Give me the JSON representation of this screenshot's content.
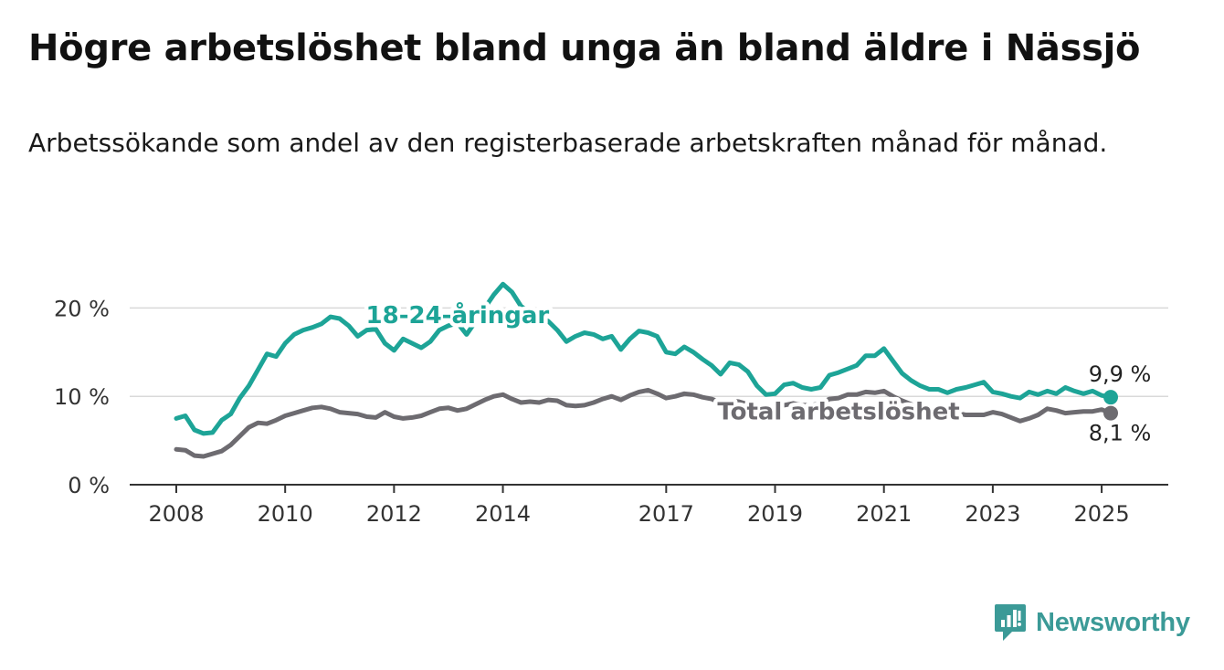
{
  "page": {
    "title": "Högre arbetslöshet bland unga än bland äldre i Nässjö",
    "subtitle": "Arbetssökande som andel av den registerbaserade arbetskraften månad för månad.",
    "brand": "Newsworthy"
  },
  "colors": {
    "youth": "#1da497",
    "total": "#6d6b70",
    "grid": "#d9d9d9",
    "axis": "#333333",
    "brand": "#3b9a97"
  },
  "chart_data": {
    "type": "line",
    "title": "Högre arbetslöshet bland unga än bland äldre i Nässjö",
    "subtitle": "Arbetssökande som andel av den registerbaserade arbetskraften månad för månad.",
    "ylim": [
      0,
      25
    ],
    "xlim": [
      "2007-02",
      "2026-08"
    ],
    "y_ticks": [
      {
        "value": 0,
        "label": "0 %"
      },
      {
        "value": 10,
        "label": "10 %"
      },
      {
        "value": 20,
        "label": "20 %"
      }
    ],
    "x_ticks": [
      {
        "date": "2008-01",
        "label": "2008"
      },
      {
        "date": "2010-01",
        "label": "2010"
      },
      {
        "date": "2012-01",
        "label": "2012"
      },
      {
        "date": "2014-01",
        "label": "2014"
      },
      {
        "date": "2017-01",
        "label": "2017"
      },
      {
        "date": "2019-01",
        "label": "2019"
      },
      {
        "date": "2021-01",
        "label": "2021"
      },
      {
        "date": "2023-01",
        "label": "2023"
      },
      {
        "date": "2025-01",
        "label": "2025"
      }
    ],
    "grid": true,
    "series": [
      {
        "name": "18-24-åringar",
        "key": "youth",
        "end_label": "9,9 %",
        "points": [
          [
            "2008-01",
            7.5
          ],
          [
            "2008-03",
            7.8
          ],
          [
            "2008-05",
            6.2
          ],
          [
            "2008-07",
            5.8
          ],
          [
            "2008-09",
            5.9
          ],
          [
            "2008-11",
            7.3
          ],
          [
            "2009-01",
            8.0
          ],
          [
            "2009-03",
            9.8
          ],
          [
            "2009-05",
            11.2
          ],
          [
            "2009-07",
            13.0
          ],
          [
            "2009-09",
            14.8
          ],
          [
            "2009-11",
            14.5
          ],
          [
            "2010-01",
            16.0
          ],
          [
            "2010-03",
            17.0
          ],
          [
            "2010-05",
            17.5
          ],
          [
            "2010-07",
            17.8
          ],
          [
            "2010-09",
            18.2
          ],
          [
            "2010-11",
            19.0
          ],
          [
            "2011-01",
            18.8
          ],
          [
            "2011-03",
            18.0
          ],
          [
            "2011-05",
            16.8
          ],
          [
            "2011-07",
            17.5
          ],
          [
            "2011-09",
            17.6
          ],
          [
            "2011-11",
            16.0
          ],
          [
            "2012-01",
            15.2
          ],
          [
            "2012-03",
            16.5
          ],
          [
            "2012-05",
            16.0
          ],
          [
            "2012-07",
            15.5
          ],
          [
            "2012-09",
            16.2
          ],
          [
            "2012-11",
            17.5
          ],
          [
            "2013-01",
            18.0
          ],
          [
            "2013-03",
            18.3
          ],
          [
            "2013-05",
            17.0
          ],
          [
            "2013-07",
            18.5
          ],
          [
            "2013-09",
            20.0
          ],
          [
            "2013-11",
            21.5
          ],
          [
            "2014-01",
            22.7
          ],
          [
            "2014-03",
            21.8
          ],
          [
            "2014-05",
            20.2
          ],
          [
            "2014-07",
            19.5
          ],
          [
            "2014-09",
            19.0
          ],
          [
            "2014-11",
            18.5
          ],
          [
            "2015-01",
            17.5
          ],
          [
            "2015-03",
            16.2
          ],
          [
            "2015-05",
            16.8
          ],
          [
            "2015-07",
            17.2
          ],
          [
            "2015-09",
            17.0
          ],
          [
            "2015-11",
            16.5
          ],
          [
            "2016-01",
            16.8
          ],
          [
            "2016-03",
            15.3
          ],
          [
            "2016-05",
            16.5
          ],
          [
            "2016-07",
            17.4
          ],
          [
            "2016-09",
            17.2
          ],
          [
            "2016-11",
            16.8
          ],
          [
            "2017-01",
            15.0
          ],
          [
            "2017-03",
            14.8
          ],
          [
            "2017-05",
            15.6
          ],
          [
            "2017-07",
            15.0
          ],
          [
            "2017-09",
            14.2
          ],
          [
            "2017-11",
            13.5
          ],
          [
            "2018-01",
            12.5
          ],
          [
            "2018-03",
            13.8
          ],
          [
            "2018-05",
            13.6
          ],
          [
            "2018-07",
            12.8
          ],
          [
            "2018-09",
            11.2
          ],
          [
            "2018-11",
            10.2
          ],
          [
            "2019-01",
            10.3
          ],
          [
            "2019-03",
            11.3
          ],
          [
            "2019-05",
            11.5
          ],
          [
            "2019-07",
            11.0
          ],
          [
            "2019-09",
            10.8
          ],
          [
            "2019-11",
            11.0
          ],
          [
            "2020-01",
            12.4
          ],
          [
            "2020-03",
            12.7
          ],
          [
            "2020-05",
            13.1
          ],
          [
            "2020-07",
            13.5
          ],
          [
            "2020-09",
            14.6
          ],
          [
            "2020-11",
            14.6
          ],
          [
            "2021-01",
            15.4
          ],
          [
            "2021-03",
            14.0
          ],
          [
            "2021-05",
            12.6
          ],
          [
            "2021-07",
            11.8
          ],
          [
            "2021-09",
            11.2
          ],
          [
            "2021-11",
            10.8
          ],
          [
            "2022-01",
            10.8
          ],
          [
            "2022-03",
            10.4
          ],
          [
            "2022-05",
            10.8
          ],
          [
            "2022-07",
            11.0
          ],
          [
            "2022-09",
            11.3
          ],
          [
            "2022-11",
            11.6
          ],
          [
            "2023-01",
            10.5
          ],
          [
            "2023-03",
            10.3
          ],
          [
            "2023-05",
            10.0
          ],
          [
            "2023-07",
            9.8
          ],
          [
            "2023-09",
            10.5
          ],
          [
            "2023-11",
            10.2
          ],
          [
            "2024-01",
            10.6
          ],
          [
            "2024-03",
            10.3
          ],
          [
            "2024-05",
            11.0
          ],
          [
            "2024-07",
            10.6
          ],
          [
            "2024-09",
            10.3
          ],
          [
            "2024-11",
            10.6
          ],
          [
            "2025-01",
            10.1
          ],
          [
            "2025-03",
            9.9
          ]
        ]
      },
      {
        "name": "Total arbetslöshet",
        "key": "total",
        "end_label": "8,1 %",
        "points": [
          [
            "2008-01",
            4.0
          ],
          [
            "2008-03",
            3.9
          ],
          [
            "2008-05",
            3.3
          ],
          [
            "2008-07",
            3.2
          ],
          [
            "2008-09",
            3.5
          ],
          [
            "2008-11",
            3.8
          ],
          [
            "2009-01",
            4.5
          ],
          [
            "2009-03",
            5.5
          ],
          [
            "2009-05",
            6.5
          ],
          [
            "2009-07",
            7.0
          ],
          [
            "2009-09",
            6.9
          ],
          [
            "2009-11",
            7.3
          ],
          [
            "2010-01",
            7.8
          ],
          [
            "2010-03",
            8.1
          ],
          [
            "2010-05",
            8.4
          ],
          [
            "2010-07",
            8.7
          ],
          [
            "2010-09",
            8.8
          ],
          [
            "2010-11",
            8.6
          ],
          [
            "2011-01",
            8.2
          ],
          [
            "2011-03",
            8.1
          ],
          [
            "2011-05",
            8.0
          ],
          [
            "2011-07",
            7.7
          ],
          [
            "2011-09",
            7.6
          ],
          [
            "2011-11",
            8.2
          ],
          [
            "2012-01",
            7.7
          ],
          [
            "2012-03",
            7.5
          ],
          [
            "2012-05",
            7.6
          ],
          [
            "2012-07",
            7.8
          ],
          [
            "2012-09",
            8.2
          ],
          [
            "2012-11",
            8.6
          ],
          [
            "2013-01",
            8.7
          ],
          [
            "2013-03",
            8.4
          ],
          [
            "2013-05",
            8.6
          ],
          [
            "2013-07",
            9.1
          ],
          [
            "2013-09",
            9.6
          ],
          [
            "2013-11",
            10.0
          ],
          [
            "2014-01",
            10.2
          ],
          [
            "2014-03",
            9.7
          ],
          [
            "2014-05",
            9.3
          ],
          [
            "2014-07",
            9.4
          ],
          [
            "2014-09",
            9.3
          ],
          [
            "2014-11",
            9.6
          ],
          [
            "2015-01",
            9.5
          ],
          [
            "2015-03",
            9.0
          ],
          [
            "2015-05",
            8.9
          ],
          [
            "2015-07",
            9.0
          ],
          [
            "2015-09",
            9.3
          ],
          [
            "2015-11",
            9.7
          ],
          [
            "2016-01",
            10.0
          ],
          [
            "2016-03",
            9.6
          ],
          [
            "2016-05",
            10.1
          ],
          [
            "2016-07",
            10.5
          ],
          [
            "2016-09",
            10.7
          ],
          [
            "2016-11",
            10.3
          ],
          [
            "2017-01",
            9.8
          ],
          [
            "2017-03",
            10.0
          ],
          [
            "2017-05",
            10.3
          ],
          [
            "2017-07",
            10.2
          ],
          [
            "2017-09",
            9.9
          ],
          [
            "2017-11",
            9.7
          ],
          [
            "2018-01",
            9.3
          ],
          [
            "2018-03",
            9.5
          ],
          [
            "2018-05",
            9.4
          ],
          [
            "2018-07",
            9.1
          ],
          [
            "2018-09",
            8.9
          ],
          [
            "2018-11",
            8.7
          ],
          [
            "2019-01",
            8.7
          ],
          [
            "2019-03",
            9.0
          ],
          [
            "2019-05",
            9.2
          ],
          [
            "2019-07",
            9.0
          ],
          [
            "2019-09",
            9.0
          ],
          [
            "2019-11",
            9.2
          ],
          [
            "2020-01",
            9.7
          ],
          [
            "2020-03",
            9.8
          ],
          [
            "2020-05",
            10.2
          ],
          [
            "2020-07",
            10.2
          ],
          [
            "2020-09",
            10.5
          ],
          [
            "2020-11",
            10.4
          ],
          [
            "2021-01",
            10.6
          ],
          [
            "2021-03",
            10.0
          ],
          [
            "2021-05",
            9.5
          ],
          [
            "2021-07",
            9.1
          ],
          [
            "2021-09",
            8.7
          ],
          [
            "2021-11",
            8.5
          ],
          [
            "2022-01",
            8.4
          ],
          [
            "2022-03",
            8.2
          ],
          [
            "2022-05",
            8.1
          ],
          [
            "2022-07",
            7.9
          ],
          [
            "2022-09",
            7.9
          ],
          [
            "2022-11",
            7.9
          ],
          [
            "2023-01",
            8.2
          ],
          [
            "2023-03",
            8.0
          ],
          [
            "2023-05",
            7.6
          ],
          [
            "2023-07",
            7.2
          ],
          [
            "2023-09",
            7.5
          ],
          [
            "2023-11",
            7.9
          ],
          [
            "2024-01",
            8.6
          ],
          [
            "2024-03",
            8.4
          ],
          [
            "2024-05",
            8.1
          ],
          [
            "2024-07",
            8.2
          ],
          [
            "2024-09",
            8.3
          ],
          [
            "2024-11",
            8.3
          ],
          [
            "2025-01",
            8.5
          ],
          [
            "2025-03",
            8.1
          ]
        ]
      }
    ],
    "annotations": [
      {
        "series": "youth",
        "text": "18-24-åringar",
        "date": "2013-03",
        "value": 19.3
      },
      {
        "series": "total",
        "text": "Total arbetslöshet",
        "date": "2020-03",
        "value": 8.4
      }
    ]
  }
}
